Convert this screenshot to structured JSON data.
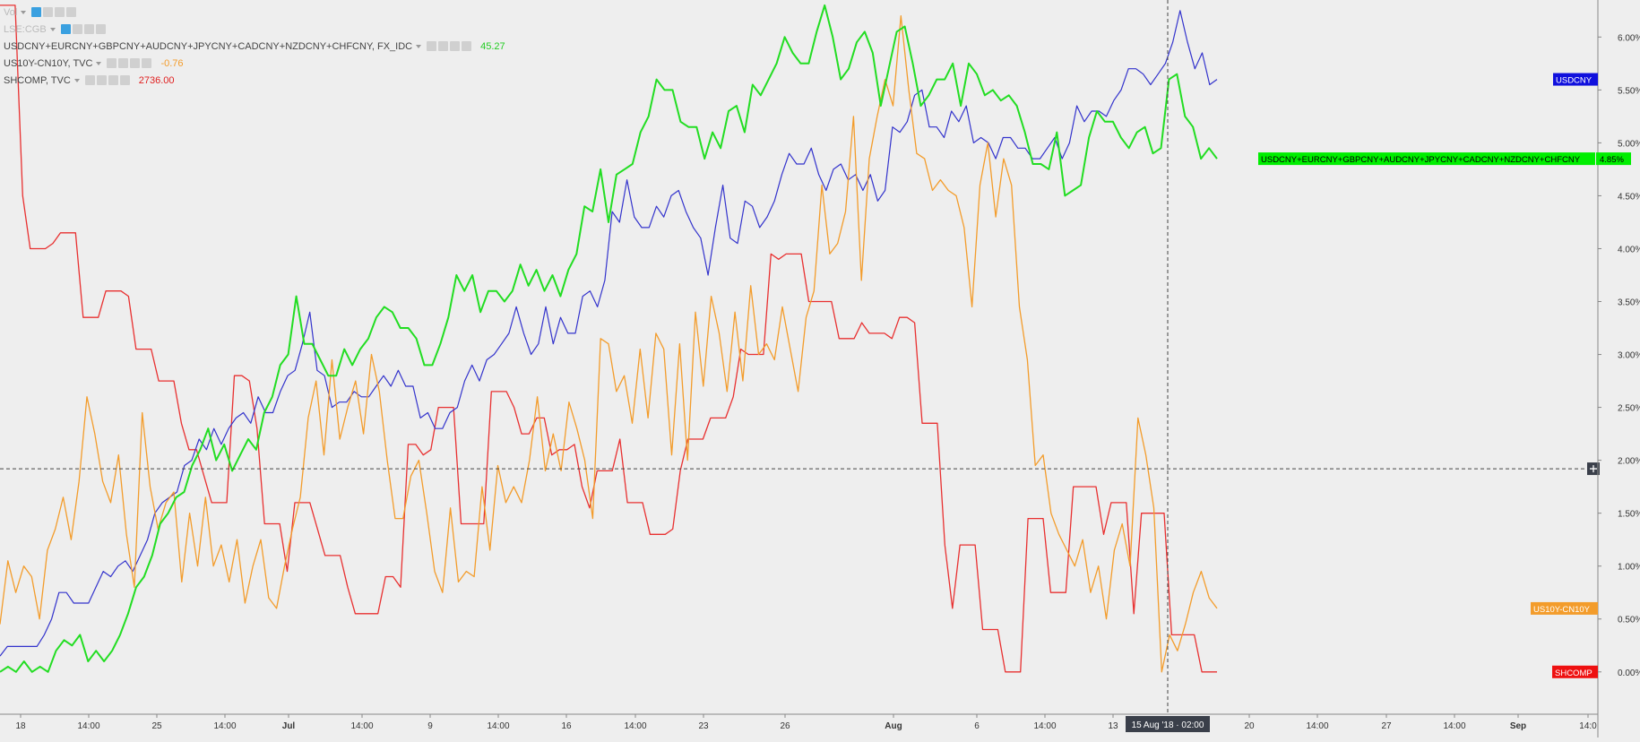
{
  "legend": {
    "rows": [
      {
        "name": "Vol",
        "value": "",
        "color": "#e06060",
        "faded": true
      },
      {
        "name": "LSE:CGB",
        "value": "",
        "color": "#bbbbbb",
        "faded": true
      },
      {
        "name": "USDCNY+EURCNY+GBPCNY+AUDCNY+JPYCNY+CADCNY+NZDCNY+CHFCNY, FX_IDC",
        "value": "45.27",
        "color": "#22cc22",
        "faded": false
      },
      {
        "name": "US10Y-CN10Y, TVC",
        "value": "-0.76",
        "color": "#f39c2b",
        "faded": false
      },
      {
        "name": "SHCOMP, TVC",
        "value": "2736.00",
        "color": "#e02020",
        "faded": false
      }
    ]
  },
  "chart_data": {
    "type": "line",
    "yaxis": {
      "position": "right",
      "range": [
        -0.4,
        6.35
      ],
      "unit": "%",
      "ticks": [
        "6.00%",
        "5.50%",
        "5.00%",
        "4.50%",
        "4.00%",
        "3.50%",
        "3.00%",
        "2.50%",
        "2.00%",
        "1.50%",
        "1.00%",
        "0.50%",
        "0.00%"
      ],
      "tick_values": [
        6.0,
        5.5,
        5.0,
        4.5,
        4.0,
        3.5,
        3.0,
        2.5,
        2.0,
        1.5,
        1.0,
        0.5,
        0.0
      ]
    },
    "xaxis": {
      "ticks": [
        "18",
        "14:00",
        "25",
        "14:00",
        "Jul",
        "14:00",
        "9",
        "14:00",
        "16",
        "14:00",
        "23",
        "26",
        "Aug",
        "6",
        "14:00",
        "13",
        "20",
        "14:00",
        "27",
        "14:00",
        "Sep",
        "14:0"
      ],
      "bold_ticks": [
        "Jul",
        "Aug",
        "Sep"
      ],
      "cursor_label": "15 Aug '18 · 02:00"
    },
    "crosshair": {
      "x_label": "15 Aug '18 · 02:00",
      "y_value": 1.92
    },
    "series": [
      {
        "name": "USDCNY",
        "color": "#3333cc",
        "label_color": "#1010dd",
        "last_label": "",
        "values": [
          0.15,
          0.24,
          0.24,
          0.24,
          0.24,
          0.24,
          0.35,
          0.5,
          0.75,
          0.75,
          0.65,
          0.65,
          0.65,
          0.8,
          0.95,
          0.9,
          1.0,
          1.05,
          0.95,
          1.1,
          1.25,
          1.5,
          1.6,
          1.65,
          1.7,
          1.95,
          2.0,
          2.2,
          2.1,
          2.3,
          2.15,
          2.3,
          2.4,
          2.45,
          2.35,
          2.6,
          2.45,
          2.45,
          2.65,
          2.8,
          2.85,
          3.1,
          3.4,
          2.85,
          2.8,
          2.5,
          2.55,
          2.55,
          2.65,
          2.6,
          2.6,
          2.7,
          2.8,
          2.7,
          2.85,
          2.7,
          2.7,
          2.4,
          2.45,
          2.3,
          2.3,
          2.45,
          2.5,
          2.75,
          2.9,
          2.75,
          2.95,
          3.0,
          3.1,
          3.2,
          3.45,
          3.2,
          3.0,
          3.1,
          3.45,
          3.1,
          3.35,
          3.2,
          3.2,
          3.55,
          3.6,
          3.45,
          3.7,
          4.35,
          4.25,
          4.65,
          4.3,
          4.2,
          4.2,
          4.4,
          4.3,
          4.5,
          4.55,
          4.35,
          4.2,
          4.1,
          3.75,
          4.2,
          4.6,
          4.1,
          4.05,
          4.45,
          4.4,
          4.2,
          4.3,
          4.45,
          4.7,
          4.9,
          4.8,
          4.8,
          4.95,
          4.7,
          4.55,
          4.75,
          4.8,
          4.65,
          4.7,
          4.55,
          4.7,
          4.45,
          4.55,
          5.15,
          5.1,
          5.2,
          5.45,
          5.5,
          5.15,
          5.15,
          5.05,
          5.3,
          5.2,
          5.35,
          5.0,
          5.05,
          5.0,
          4.85,
          5.05,
          5.05,
          4.95,
          4.95,
          4.85,
          4.85,
          4.95,
          5.05,
          4.85,
          5.0,
          5.35,
          5.2,
          5.3,
          5.3,
          5.25,
          5.4,
          5.5,
          5.7,
          5.7,
          5.65,
          5.55,
          5.65,
          5.75,
          5.95,
          6.25,
          5.95,
          5.7,
          5.85,
          5.55,
          5.6
        ]
      },
      {
        "name": "USDCNY+EURCNY+GBPCNY+AUDCNY+JPYCNY+CADCNY+NZDCNY+CHFCNY",
        "color": "#22dd22",
        "label_color": "#00ee00",
        "last_label": "4.85%",
        "values": [
          0.0,
          0.05,
          0.0,
          0.1,
          0.0,
          0.05,
          0.0,
          0.2,
          0.3,
          0.25,
          0.35,
          0.1,
          0.2,
          0.1,
          0.2,
          0.35,
          0.55,
          0.8,
          0.9,
          1.1,
          1.4,
          1.5,
          1.65,
          1.7,
          1.95,
          2.1,
          2.3,
          2.0,
          2.15,
          1.9,
          2.05,
          2.2,
          2.1,
          2.45,
          2.6,
          2.9,
          3.0,
          3.55,
          3.1,
          3.1,
          2.95,
          2.8,
          2.8,
          3.05,
          2.9,
          3.05,
          3.15,
          3.35,
          3.45,
          3.4,
          3.25,
          3.25,
          3.15,
          2.9,
          2.9,
          3.1,
          3.35,
          3.75,
          3.6,
          3.75,
          3.4,
          3.6,
          3.6,
          3.5,
          3.6,
          3.85,
          3.65,
          3.8,
          3.6,
          3.75,
          3.55,
          3.8,
          3.95,
          4.4,
          4.35,
          4.75,
          4.25,
          4.7,
          4.75,
          4.8,
          5.1,
          5.25,
          5.6,
          5.5,
          5.5,
          5.2,
          5.15,
          5.15,
          4.85,
          5.1,
          4.95,
          5.3,
          5.35,
          5.1,
          5.55,
          5.45,
          5.6,
          5.75,
          6.0,
          5.85,
          5.75,
          5.75,
          6.05,
          6.3,
          6.0,
          5.6,
          5.7,
          5.95,
          6.05,
          5.85,
          5.35,
          5.7,
          6.05,
          6.1,
          5.75,
          5.35,
          5.45,
          5.6,
          5.6,
          5.75,
          5.35,
          5.75,
          5.65,
          5.45,
          5.5,
          5.4,
          5.45,
          5.35,
          5.1,
          4.8,
          4.8,
          4.75,
          5.1,
          4.5,
          4.55,
          4.6,
          5.05,
          5.3,
          5.2,
          5.2,
          5.05,
          4.95,
          5.1,
          5.15,
          4.9,
          4.95,
          5.6,
          5.65,
          5.25,
          5.15,
          4.85,
          4.95,
          4.85
        ]
      },
      {
        "name": "US10Y-CN10Y",
        "color": "#f39c2b",
        "label_color": "#f39c2b",
        "last_label": "",
        "values": [
          0.45,
          1.05,
          0.75,
          1.0,
          0.9,
          0.5,
          1.15,
          1.35,
          1.65,
          1.25,
          1.8,
          2.6,
          2.25,
          1.8,
          1.6,
          2.05,
          1.3,
          0.8,
          2.45,
          1.75,
          1.35,
          1.6,
          1.7,
          0.85,
          1.5,
          1.0,
          1.65,
          1.0,
          1.2,
          0.85,
          1.25,
          0.65,
          1.0,
          1.25,
          0.7,
          0.6,
          1.0,
          1.35,
          1.65,
          2.4,
          2.75,
          2.05,
          2.95,
          2.2,
          2.5,
          2.75,
          2.25,
          3.0,
          2.65,
          2.0,
          1.45,
          1.45,
          1.85,
          2.0,
          1.5,
          0.95,
          0.75,
          1.55,
          0.85,
          0.95,
          0.9,
          1.75,
          1.15,
          1.95,
          1.6,
          1.75,
          1.6,
          2.0,
          2.6,
          1.9,
          2.25,
          1.9,
          2.55,
          2.3,
          2.0,
          1.45,
          3.15,
          3.1,
          2.65,
          2.8,
          2.35,
          3.05,
          2.4,
          3.2,
          3.05,
          2.05,
          3.1,
          2.0,
          3.4,
          2.7,
          3.55,
          3.2,
          2.65,
          3.4,
          2.75,
          3.65,
          3.0,
          3.1,
          2.95,
          3.45,
          3.05,
          2.65,
          3.35,
          3.6,
          4.6,
          3.95,
          4.05,
          4.35,
          5.25,
          3.7,
          4.85,
          5.25,
          5.6,
          5.35,
          6.2,
          5.5,
          4.9,
          4.85,
          4.55,
          4.65,
          4.55,
          4.5,
          4.2,
          3.45,
          4.6,
          5.0,
          4.3,
          4.85,
          4.6,
          3.45,
          2.95,
          1.95,
          2.05,
          1.5,
          1.3,
          1.15,
          1.0,
          1.25,
          0.75,
          1.0,
          0.5,
          1.15,
          1.4,
          1.0,
          2.4,
          2.05,
          1.55,
          0.0,
          0.35,
          0.2,
          0.45,
          0.75,
          0.95,
          0.7,
          0.6
        ]
      },
      {
        "name": "SHCOMP",
        "color": "#e83030",
        "label_color": "#ee1010",
        "last_label": "",
        "values": [
          6.3,
          6.3,
          6.3,
          4.5,
          4.0,
          4.0,
          4.0,
          4.05,
          4.15,
          4.15,
          4.15,
          3.35,
          3.35,
          3.35,
          3.6,
          3.6,
          3.6,
          3.55,
          3.05,
          3.05,
          3.05,
          2.75,
          2.75,
          2.75,
          2.35,
          2.1,
          2.1,
          1.85,
          1.6,
          1.6,
          1.6,
          2.8,
          2.8,
          2.75,
          2.3,
          1.4,
          1.4,
          1.4,
          0.95,
          1.6,
          1.6,
          1.6,
          1.35,
          1.1,
          1.1,
          1.1,
          0.8,
          0.55,
          0.55,
          0.55,
          0.55,
          0.9,
          0.9,
          0.8,
          2.15,
          2.15,
          2.05,
          2.1,
          2.5,
          2.5,
          2.5,
          1.4,
          1.4,
          1.4,
          1.4,
          2.65,
          2.65,
          2.65,
          2.5,
          2.25,
          2.25,
          2.4,
          2.4,
          2.05,
          2.1,
          2.1,
          2.15,
          1.75,
          1.55,
          1.9,
          1.9,
          1.9,
          2.2,
          1.6,
          1.6,
          1.6,
          1.3,
          1.3,
          1.3,
          1.35,
          1.9,
          2.2,
          2.2,
          2.2,
          2.4,
          2.4,
          2.4,
          2.6,
          3.05,
          3.0,
          3.0,
          3.0,
          3.95,
          3.9,
          3.95,
          3.95,
          3.95,
          3.5,
          3.5,
          3.5,
          3.5,
          3.15,
          3.15,
          3.15,
          3.3,
          3.2,
          3.2,
          3.2,
          3.15,
          3.35,
          3.35,
          3.3,
          2.35,
          2.35,
          2.35,
          1.2,
          0.6,
          1.2,
          1.2,
          1.2,
          0.4,
          0.4,
          0.4,
          0.0,
          0.0,
          0.0,
          1.45,
          1.45,
          1.45,
          0.75,
          0.75,
          0.75,
          1.75,
          1.75,
          1.75,
          1.75,
          1.3,
          1.6,
          1.6,
          1.6,
          0.55,
          1.5,
          1.5,
          1.5,
          1.5,
          0.35,
          0.35,
          0.35,
          0.35,
          0.0,
          0.0,
          0.0
        ]
      }
    ]
  }
}
